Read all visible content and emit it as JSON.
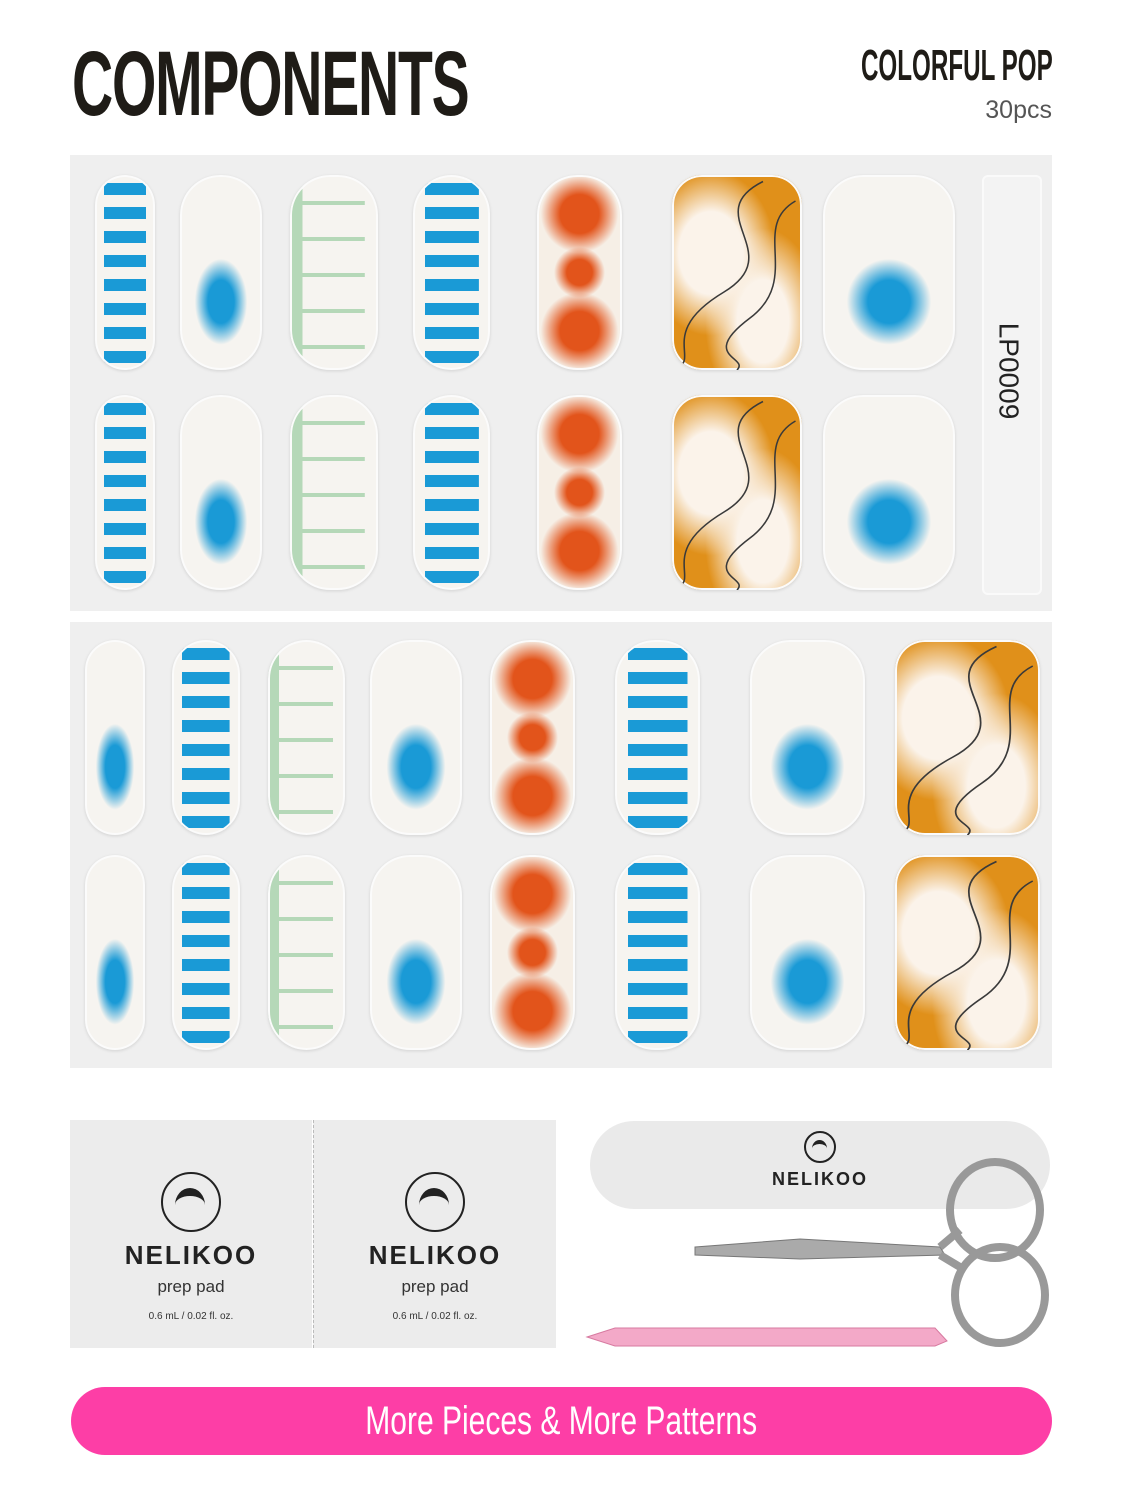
{
  "header": {
    "title": "COMPONENTS",
    "collection": "COLORFUL POP",
    "count": "30pcs"
  },
  "sheets": [
    {
      "code": "LP0009",
      "patterns": [
        "stripes",
        "blob",
        "drip",
        "stripes",
        "dots",
        "swirl",
        "blob"
      ]
    },
    {
      "patterns": [
        "blob",
        "stripes",
        "drip",
        "blob",
        "dots",
        "stripes",
        "blob",
        "swirl"
      ]
    }
  ],
  "prep_pads": [
    {
      "brand": "NELIKOO",
      "label": "prep pad",
      "volume": "0.6 mL / 0.02 fl. oz."
    },
    {
      "brand": "NELIKOO",
      "label": "prep pad",
      "volume": "0.6 mL / 0.02 fl. oz."
    }
  ],
  "nail_file": {
    "brand": "NELIKOO"
  },
  "colors": {
    "blue": "#1a9ad6",
    "orange": "#e0901a",
    "mint": "#b5d8b8",
    "pink": "#fd3ea6"
  },
  "cta": {
    "label": "More Pieces & More Patterns"
  }
}
